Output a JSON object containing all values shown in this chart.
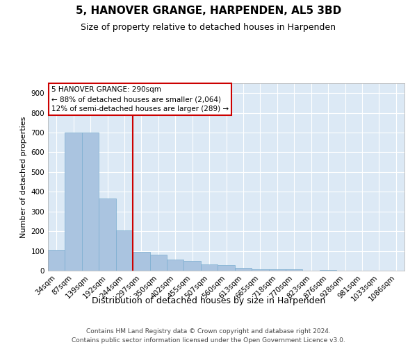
{
  "title": "5, HANOVER GRANGE, HARPENDEN, AL5 3BD",
  "subtitle": "Size of property relative to detached houses in Harpenden",
  "xlabel": "Distribution of detached houses by size in Harpenden",
  "ylabel": "Number of detached properties",
  "categories": [
    "34sqm",
    "87sqm",
    "139sqm",
    "192sqm",
    "244sqm",
    "297sqm",
    "350sqm",
    "402sqm",
    "455sqm",
    "507sqm",
    "560sqm",
    "613sqm",
    "665sqm",
    "718sqm",
    "770sqm",
    "823sqm",
    "876sqm",
    "928sqm",
    "981sqm",
    "1033sqm",
    "1086sqm"
  ],
  "values": [
    105,
    700,
    700,
    365,
    205,
    95,
    80,
    55,
    50,
    30,
    28,
    15,
    8,
    8,
    8,
    0,
    5,
    0,
    0,
    0,
    0
  ],
  "bar_color": "#aac4e0",
  "bar_edge_color": "#7aadd0",
  "vline_color": "#cc0000",
  "vline_pos": 4.5,
  "annotation_line1": "5 HANOVER GRANGE: 290sqm",
  "annotation_line2": "← 88% of detached houses are smaller (2,064)",
  "annotation_line3": "12% of semi-detached houses are larger (289) →",
  "annotation_box_edgecolor": "#cc0000",
  "ylim": [
    0,
    950
  ],
  "yticks": [
    0,
    100,
    200,
    300,
    400,
    500,
    600,
    700,
    800,
    900
  ],
  "grid_color": "white",
  "background_color": "#dce9f5",
  "footer_line1": "Contains HM Land Registry data © Crown copyright and database right 2024.",
  "footer_line2": "Contains public sector information licensed under the Open Government Licence v3.0."
}
